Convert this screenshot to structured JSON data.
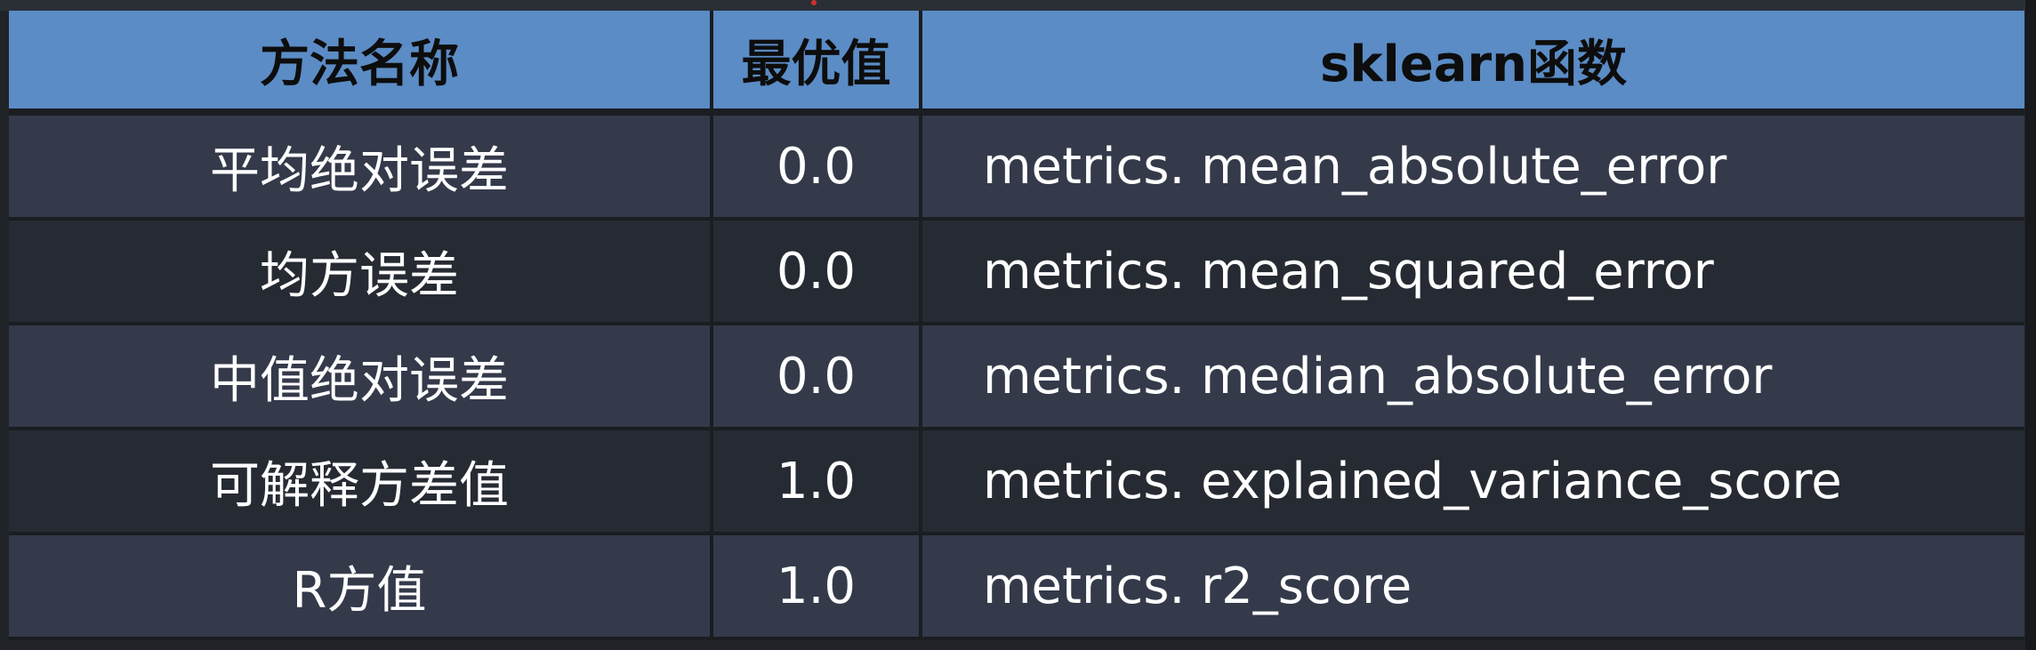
{
  "table": {
    "headers": [
      "方法名称",
      "最优值",
      "sklearn函数"
    ],
    "rows": [
      {
        "name": "平均绝对误差",
        "best": "0.0",
        "func": "metrics. mean_absolute_error"
      },
      {
        "name": "均方误差",
        "best": "0.0",
        "func": "metrics. mean_squared_error"
      },
      {
        "name": "中值绝对误差",
        "best": "0.0",
        "func": "metrics. median_absolute_error"
      },
      {
        "name": "可解释方差值",
        "best": "1.0",
        "func": "metrics. explained_variance_score"
      },
      {
        "name": "R方值",
        "best": "1.0",
        "func": "metrics. r2_score"
      }
    ]
  },
  "colors": {
    "header_bg": "#5b8cc6",
    "row_odd_bg": "#343a4a",
    "row_even_bg": "#262b33",
    "border": "#1a1d21",
    "text": "#ffffff"
  }
}
